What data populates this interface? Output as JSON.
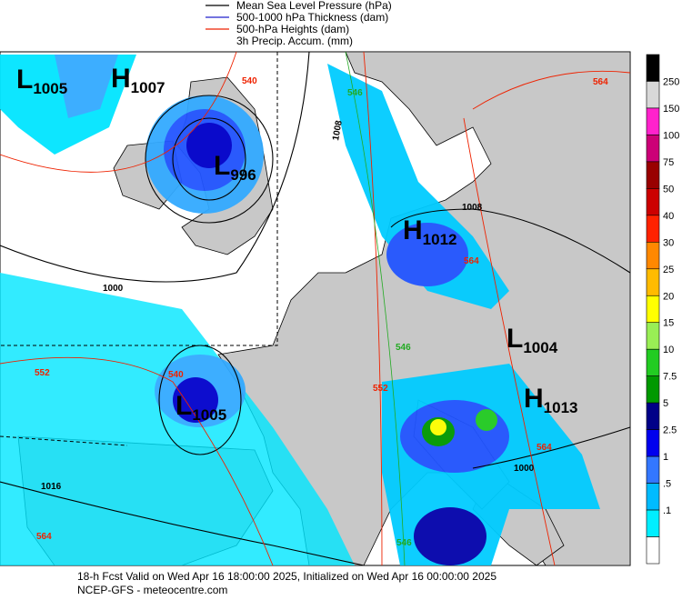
{
  "legend": [
    {
      "label": "Mean Sea Level Pressure (hPa)",
      "color": "#000000"
    },
    {
      "label": "500-1000 hPa Thickness (dam)",
      "color": "#2222cc"
    },
    {
      "label": "500-hPa Heights (dam)",
      "color": "#ee2200"
    },
    {
      "label": "3h Precip. Accum. (mm)"
    }
  ],
  "colorbar": {
    "labels": [
      "250",
      "150",
      "100",
      "75",
      "50",
      "40",
      "30",
      "25",
      "20",
      "15",
      "10",
      "7.5",
      "5",
      "2.5",
      "1",
      ".5",
      ".1"
    ],
    "colors": [
      "#000000",
      "#d8d8d8",
      "#ff22cc",
      "#cc0077",
      "#990000",
      "#cc0000",
      "#ff2200",
      "#ff8800",
      "#ffbb00",
      "#ffff00",
      "#99ee55",
      "#22cc22",
      "#009900",
      "#000088",
      "#0000ee",
      "#3377ff",
      "#00bbff",
      "#00eeff",
      "#ffffff"
    ]
  },
  "pressure_centers": [
    {
      "letter": "L",
      "value": "1005"
    },
    {
      "letter": "H",
      "value": "1007"
    },
    {
      "letter": "L",
      "value": "996"
    },
    {
      "letter": "H",
      "value": "1012"
    },
    {
      "letter": "L",
      "value": "1004"
    },
    {
      "letter": "L",
      "value": "1005"
    },
    {
      "letter": "H",
      "value": "1013"
    }
  ],
  "contour_labels": [
    "1000",
    "1008",
    "1008",
    "1016",
    "1000",
    "540",
    "540",
    "546",
    "546",
    "546",
    "552",
    "552",
    "564",
    "564",
    "564",
    "564"
  ],
  "footer": [
    "18-h Fcst Valid on Wed Apr 16 18:00:00 2025, Initialized on Wed Apr 16 00:00:00 2025",
    "NCEP-GFS  - meteocentre.com"
  ]
}
